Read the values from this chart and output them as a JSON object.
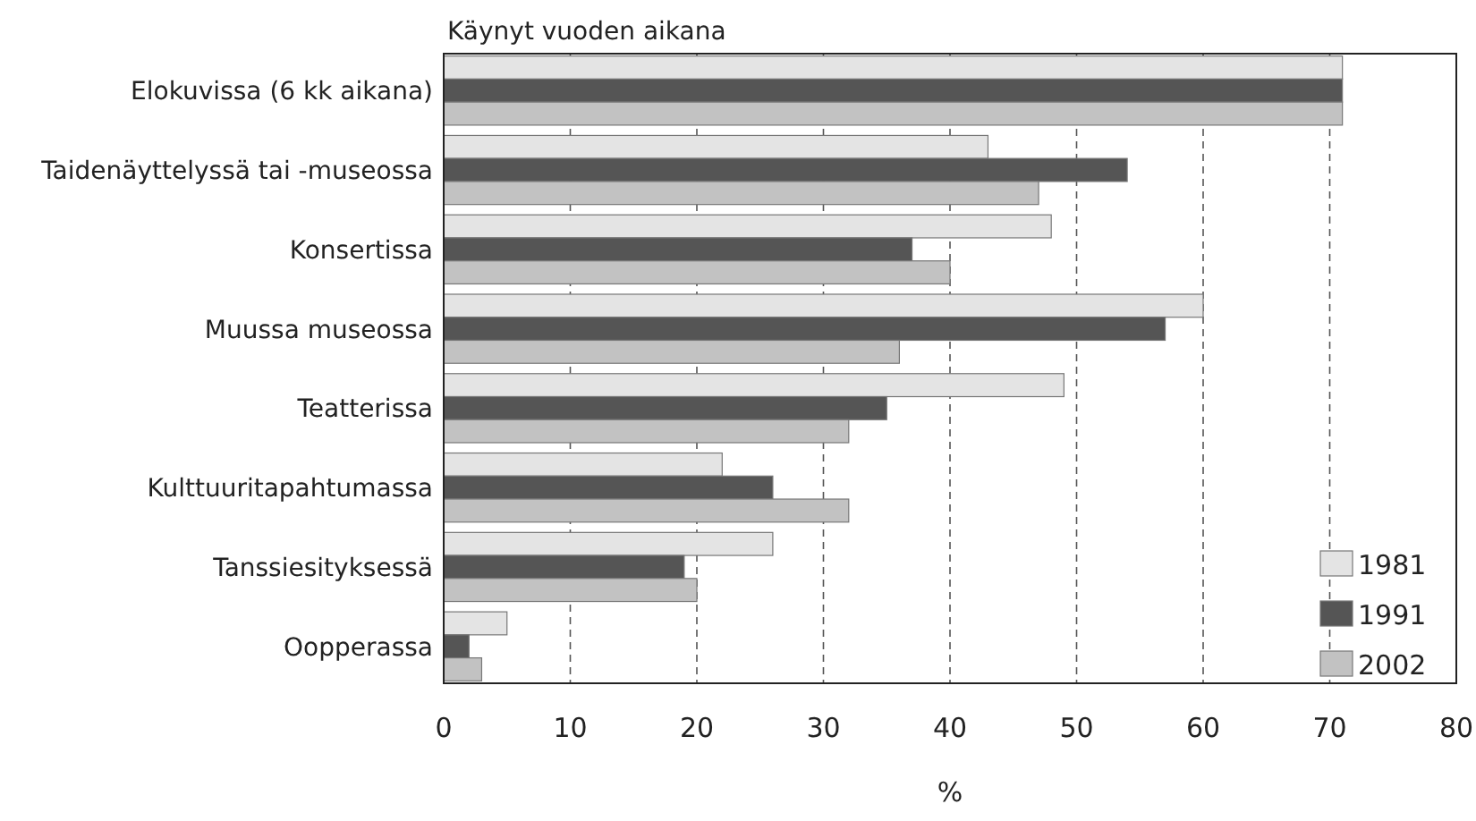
{
  "chart_data": {
    "type": "bar",
    "orientation": "horizontal",
    "title": "Käynyt vuoden aikana",
    "xlabel": "%",
    "categories": [
      "Elokuvissa (6 kk aikana)",
      "Taidenäyttelyssä tai -museossa",
      "Konsertissa",
      "Muussa museossa",
      "Teatterissa",
      "Kulttuuritapahtumassa",
      "Tanssiesityksessä",
      "Oopperassa"
    ],
    "series": [
      {
        "name": "1981",
        "color": "#e4e4e4",
        "values": [
          71,
          43,
          48,
          60,
          49,
          22,
          26,
          5
        ]
      },
      {
        "name": "1991",
        "color": "#555555",
        "values": [
          71,
          54,
          37,
          57,
          35,
          26,
          19,
          2
        ]
      },
      {
        "name": "2002",
        "color": "#c2c2c2",
        "values": [
          71,
          47,
          40,
          36,
          32,
          32,
          20,
          3
        ]
      }
    ],
    "xlim": [
      0,
      80
    ],
    "xticks": [
      0,
      10,
      20,
      30,
      40,
      50,
      60,
      70,
      80
    ],
    "grid": "x",
    "legend": "bottom right"
  }
}
